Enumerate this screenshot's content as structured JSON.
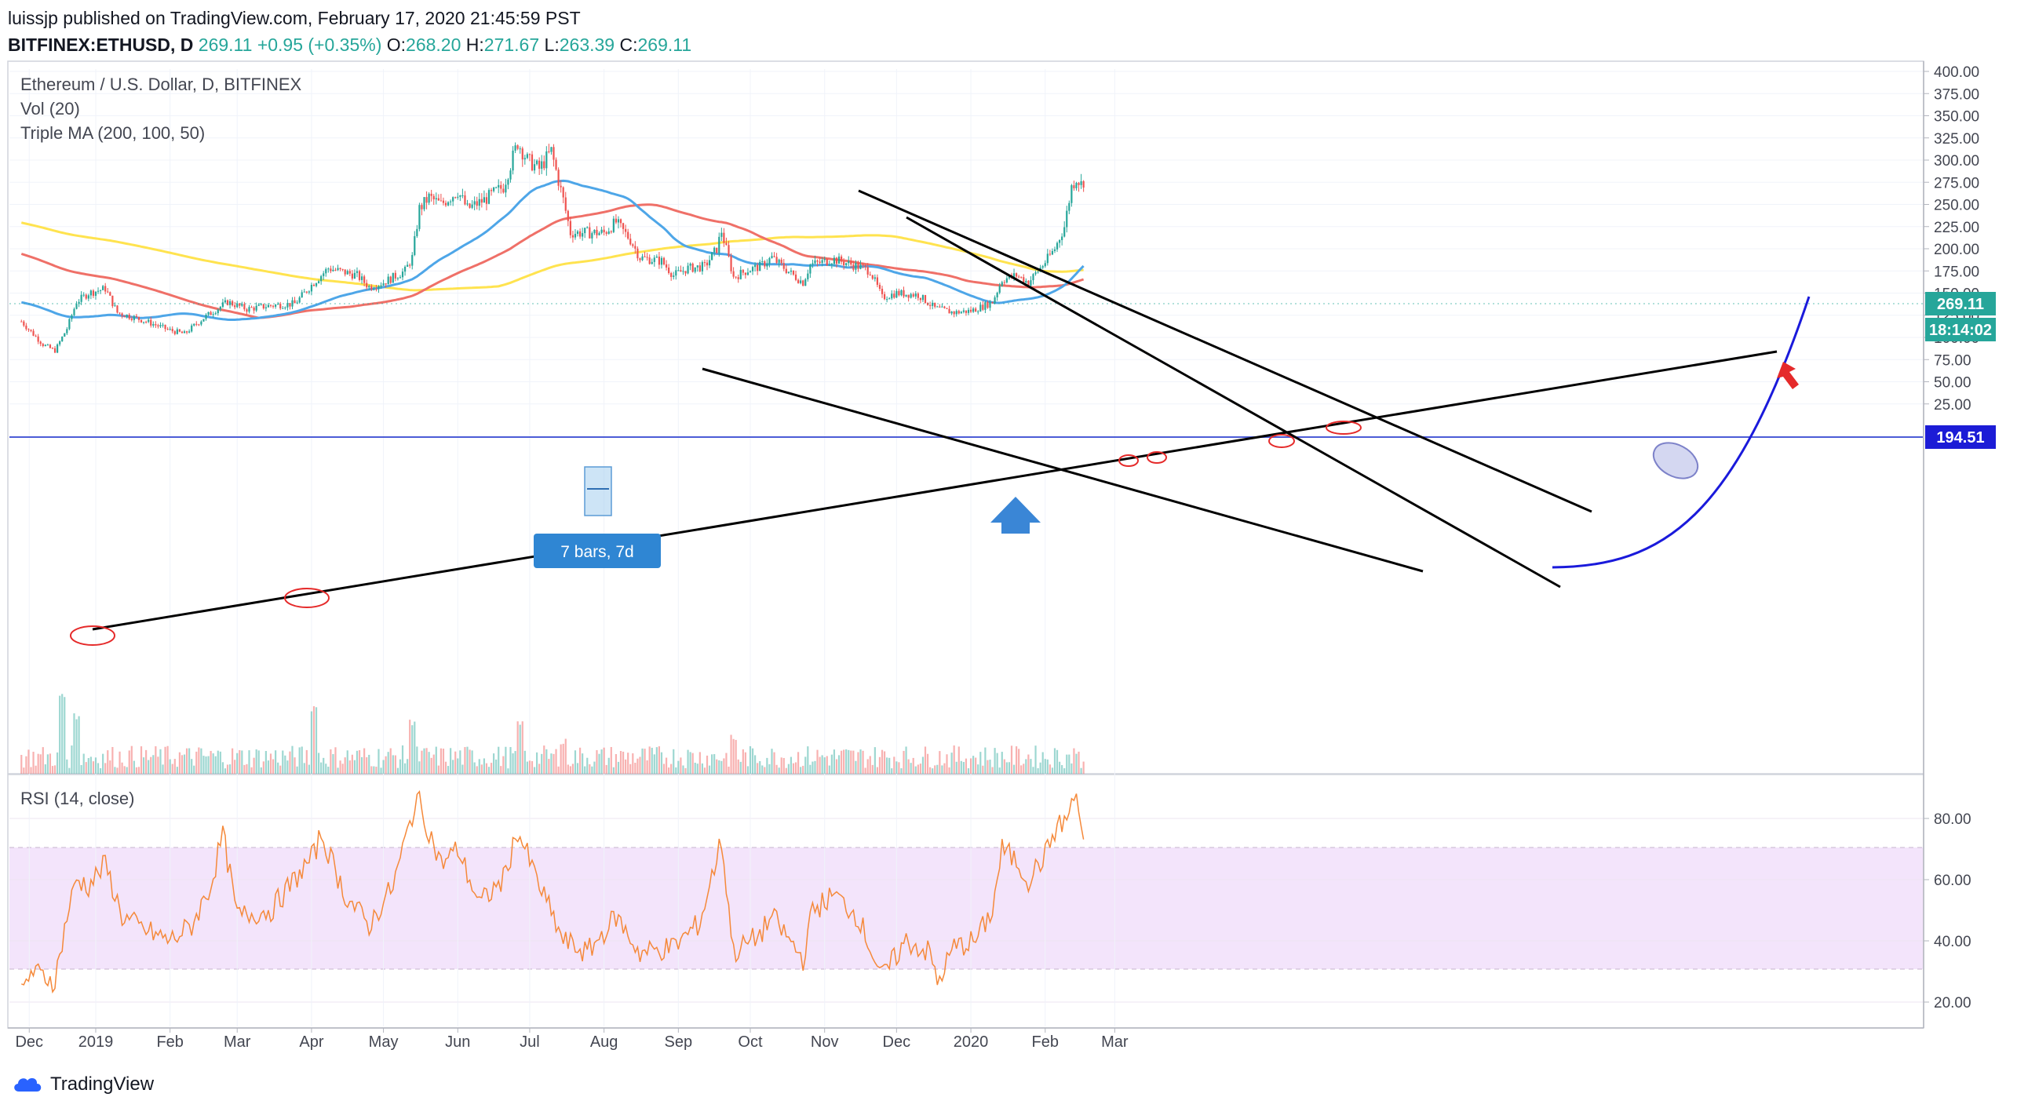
{
  "header": {
    "publisher": "luissjp published on TradingView.com, February 17, 2020 21:45:59 PST",
    "symbol": "BITFINEX:ETHUSD, D",
    "last": "269.11",
    "change": "+0.95 (+0.35%)",
    "o_label": "O:",
    "o": "268.20",
    "h_label": "H:",
    "h": "271.67",
    "l_label": "L:",
    "l": "263.39",
    "c_label": "C:",
    "c": "269.11"
  },
  "legend": {
    "main": "Ethereum / U.S. Dollar, D, BITFINEX",
    "vol": "Vol (20)",
    "ma": "Triple MA (200, 100, 50)",
    "rsi": "RSI (14, close)"
  },
  "labels": {
    "last_price": "269.11",
    "countdown": "18:14:02",
    "hline_price": "194.51",
    "bars_tooltip": "7 bars, 7d"
  },
  "footer": {
    "brand": "TradingView"
  },
  "colors": {
    "up": "#26a69a",
    "down": "#ef5350",
    "ma50": "#4ea6e8",
    "ma100": "#ef7068",
    "ma200": "#ffe34f",
    "hline": "#4c5cd6",
    "rsi": "#f5893a",
    "rsi_band": "#f3e4fb",
    "curve": "#1a1adb",
    "up_arrow": "#3a86d6",
    "red_arrow": "#e52a2a"
  },
  "chart_data": {
    "type": "candlestick",
    "price_axis": {
      "ticks": [
        25,
        50,
        75,
        100,
        125,
        150,
        175,
        200,
        225,
        250,
        275,
        300,
        325,
        350,
        375,
        400
      ],
      "range": [
        0,
        400
      ]
    },
    "rsi_axis": {
      "ticks": [
        20,
        40,
        60,
        80
      ],
      "band": [
        30,
        70
      ]
    },
    "x_axis": {
      "labels": [
        "Dec",
        "2019",
        "Feb",
        "Mar",
        "Apr",
        "May",
        "Jun",
        "Jul",
        "Aug",
        "Sep",
        "Oct",
        "Nov",
        "Dec",
        "2020",
        "Feb",
        "Mar"
      ]
    },
    "price_anchors": [
      [
        "2018-12-01",
        118
      ],
      [
        "2018-12-10",
        92
      ],
      [
        "2018-12-15",
        85
      ],
      [
        "2018-12-20",
        110
      ],
      [
        "2018-12-24",
        140
      ],
      [
        "2018-12-29",
        150
      ],
      [
        "2019-01-05",
        155
      ],
      [
        "2019-01-10",
        128
      ],
      [
        "2019-01-20",
        120
      ],
      [
        "2019-02-01",
        108
      ],
      [
        "2019-02-07",
        104
      ],
      [
        "2019-02-15",
        122
      ],
      [
        "2019-02-25",
        140
      ],
      [
        "2019-03-05",
        132
      ],
      [
        "2019-03-15",
        136
      ],
      [
        "2019-03-25",
        138
      ],
      [
        "2019-04-02",
        162
      ],
      [
        "2019-04-08",
        178
      ],
      [
        "2019-04-20",
        170
      ],
      [
        "2019-04-25",
        157
      ],
      [
        "2019-05-01",
        162
      ],
      [
        "2019-05-10",
        175
      ],
      [
        "2019-05-13",
        190
      ],
      [
        "2019-05-16",
        245
      ],
      [
        "2019-05-20",
        258
      ],
      [
        "2019-05-25",
        250
      ],
      [
        "2019-06-01",
        265
      ],
      [
        "2019-06-05",
        245
      ],
      [
        "2019-06-12",
        255
      ],
      [
        "2019-06-20",
        270
      ],
      [
        "2019-06-26",
        320
      ],
      [
        "2019-06-30",
        300
      ],
      [
        "2019-07-05",
        290
      ],
      [
        "2019-07-10",
        310
      ],
      [
        "2019-07-15",
        255
      ],
      [
        "2019-07-18",
        218
      ],
      [
        "2019-07-25",
        218
      ],
      [
        "2019-08-01",
        218
      ],
      [
        "2019-08-06",
        230
      ],
      [
        "2019-08-12",
        210
      ],
      [
        "2019-08-16",
        190
      ],
      [
        "2019-08-25",
        186
      ],
      [
        "2019-08-30",
        170
      ],
      [
        "2019-09-05",
        178
      ],
      [
        "2019-09-12",
        180
      ],
      [
        "2019-09-17",
        200
      ],
      [
        "2019-09-19",
        220
      ],
      [
        "2019-09-24",
        168
      ],
      [
        "2019-09-30",
        176
      ],
      [
        "2019-10-05",
        180
      ],
      [
        "2019-10-10",
        190
      ],
      [
        "2019-10-18",
        172
      ],
      [
        "2019-10-23",
        162
      ],
      [
        "2019-10-26",
        182
      ],
      [
        "2019-11-05",
        188
      ],
      [
        "2019-11-15",
        180
      ],
      [
        "2019-11-20",
        175
      ],
      [
        "2019-11-25",
        145
      ],
      [
        "2019-12-01",
        150
      ],
      [
        "2019-12-10",
        148
      ],
      [
        "2019-12-17",
        133
      ],
      [
        "2019-12-25",
        128
      ],
      [
        "2020-01-01",
        130
      ],
      [
        "2020-01-06",
        135
      ],
      [
        "2020-01-10",
        140
      ],
      [
        "2020-01-14",
        165
      ],
      [
        "2020-01-20",
        170
      ],
      [
        "2020-01-25",
        162
      ],
      [
        "2020-02-01",
        185
      ],
      [
        "2020-02-05",
        200
      ],
      [
        "2020-02-09",
        225
      ],
      [
        "2020-02-12",
        270
      ],
      [
        "2020-02-14",
        280
      ],
      [
        "2020-02-17",
        269
      ]
    ],
    "rsi_anchors": [
      [
        "2018-12-01",
        22
      ],
      [
        "2018-12-05",
        30
      ],
      [
        "2018-12-15",
        27
      ],
      [
        "2018-12-20",
        48
      ],
      [
        "2018-12-24",
        60
      ],
      [
        "2018-12-29",
        58
      ],
      [
        "2019-01-05",
        65
      ],
      [
        "2019-01-12",
        48
      ],
      [
        "2019-01-20",
        44
      ],
      [
        "2019-02-01",
        40
      ],
      [
        "2019-02-10",
        45
      ],
      [
        "2019-02-18",
        58
      ],
      [
        "2019-02-23",
        75
      ],
      [
        "2019-03-01",
        48
      ],
      [
        "2019-03-15",
        50
      ],
      [
        "2019-04-02",
        68
      ],
      [
        "2019-04-05",
        75
      ],
      [
        "2019-04-15",
        55
      ],
      [
        "2019-04-25",
        45
      ],
      [
        "2019-05-05",
        58
      ],
      [
        "2019-05-15",
        87
      ],
      [
        "2019-05-25",
        65
      ],
      [
        "2019-06-01",
        70
      ],
      [
        "2019-06-10",
        52
      ],
      [
        "2019-06-20",
        60
      ],
      [
        "2019-06-26",
        76
      ],
      [
        "2019-07-05",
        58
      ],
      [
        "2019-07-15",
        40
      ],
      [
        "2019-07-25",
        36
      ],
      [
        "2019-08-06",
        48
      ],
      [
        "2019-08-16",
        36
      ],
      [
        "2019-08-30",
        38
      ],
      [
        "2019-09-10",
        46
      ],
      [
        "2019-09-19",
        73
      ],
      [
        "2019-09-24",
        36
      ],
      [
        "2019-10-05",
        42
      ],
      [
        "2019-10-10",
        48
      ],
      [
        "2019-10-23",
        34
      ],
      [
        "2019-10-27",
        50
      ],
      [
        "2019-11-05",
        55
      ],
      [
        "2019-11-15",
        48
      ],
      [
        "2019-11-25",
        28
      ],
      [
        "2019-12-05",
        40
      ],
      [
        "2019-12-15",
        36
      ],
      [
        "2019-12-18",
        26
      ],
      [
        "2019-12-25",
        38
      ],
      [
        "2020-01-03",
        40
      ],
      [
        "2020-01-10",
        50
      ],
      [
        "2020-01-14",
        70
      ],
      [
        "2020-01-20",
        66
      ],
      [
        "2020-01-25",
        60
      ],
      [
        "2020-02-01",
        68
      ],
      [
        "2020-02-05",
        76
      ],
      [
        "2020-02-10",
        80
      ],
      [
        "2020-02-14",
        88
      ],
      [
        "2020-02-17",
        72
      ]
    ],
    "volume_spikes": [
      [
        "2018-12-18",
        82
      ],
      [
        "2018-12-24",
        60
      ],
      [
        "2019-04-02",
        70
      ],
      [
        "2019-05-13",
        52
      ],
      [
        "2019-06-27",
        54
      ],
      [
        "2019-07-15",
        30
      ],
      [
        "2019-09-24",
        34
      ],
      [
        "2020-02-14",
        22
      ]
    ]
  }
}
